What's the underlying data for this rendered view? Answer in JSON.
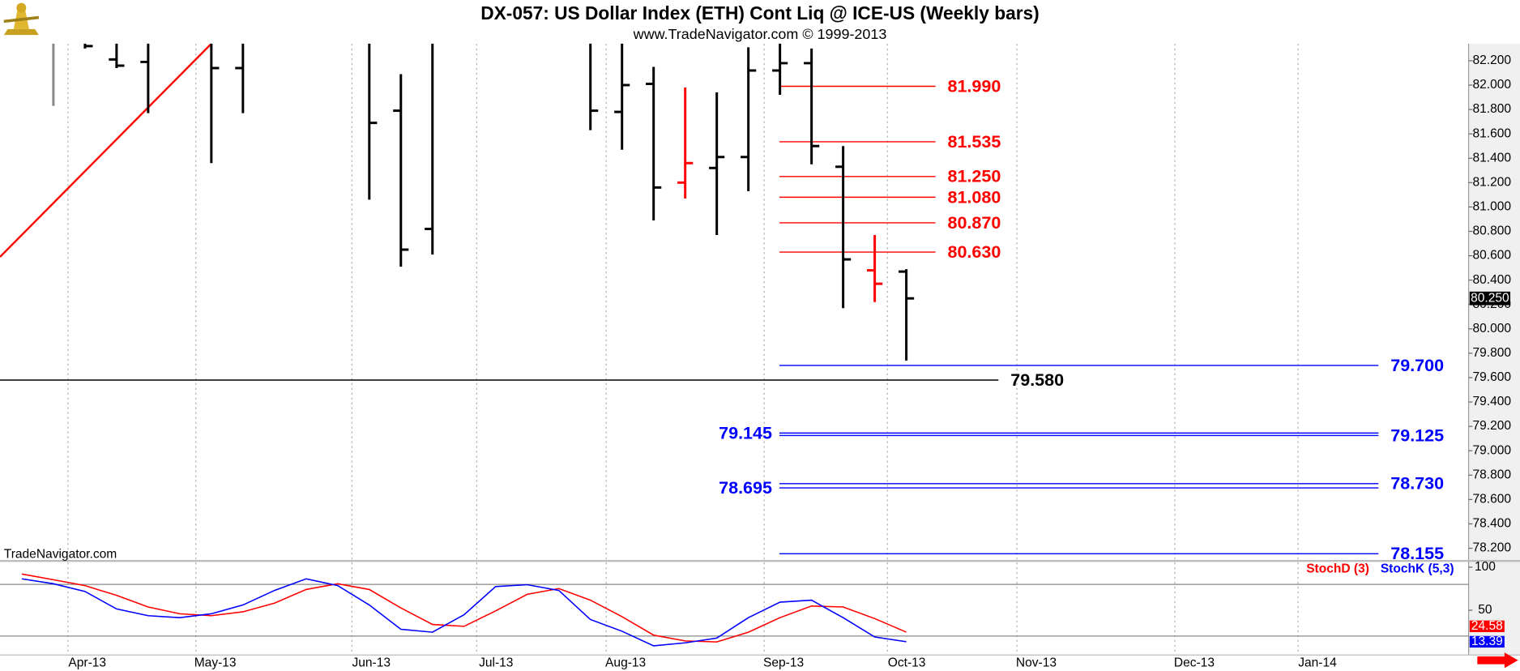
{
  "header": {
    "title": "DX-057:  US Dollar Index (ETH) Cont Liq @ ICE-US  (Weekly bars)",
    "subtitle": "www.TradeNavigator.com © 1999-2013"
  },
  "watermark": "TradeNavigator.com",
  "chart_data": [
    {
      "type": "ohlc",
      "x": [
        0,
        1,
        2,
        3,
        5,
        6,
        10,
        11,
        12,
        17,
        18,
        19,
        20,
        21,
        22,
        23,
        24,
        25,
        26,
        27
      ],
      "open": [
        null,
        null,
        82.21,
        82.19,
        null,
        82.14,
        null,
        81.79,
        80.82,
        null,
        81.78,
        82.01,
        81.2,
        81.32,
        81.41,
        82.12,
        82.18,
        81.33,
        80.48,
        80.47
      ],
      "high": [
        82.4,
        82.4,
        82.4,
        82.4,
        82.4,
        82.4,
        82.4,
        82.09,
        82.4,
        82.4,
        82.4,
        82.15,
        81.98,
        81.94,
        82.31,
        82.4,
        82.3,
        81.5,
        80.77,
        80.49
      ],
      "low": [
        81.83,
        82.3,
        82.14,
        81.77,
        81.36,
        81.77,
        81.06,
        80.51,
        80.61,
        81.63,
        81.47,
        80.89,
        81.07,
        80.77,
        81.13,
        81.92,
        81.35,
        80.17,
        80.22,
        79.74
      ],
      "close": [
        null,
        82.32,
        82.16,
        null,
        82.14,
        null,
        81.69,
        80.65,
        null,
        81.79,
        82.0,
        81.16,
        81.36,
        81.41,
        82.12,
        82.18,
        81.5,
        80.57,
        80.37,
        80.25
      ],
      "colors": [
        "#888888",
        "#000000",
        "#000000",
        "#000000",
        "#000000",
        "#000000",
        "#000000",
        "#000000",
        "#000000",
        "#000000",
        "#000000",
        "#000000",
        "#ff0000",
        "#000000",
        "#000000",
        "#000000",
        "#000000",
        "#000000",
        "#ff0000",
        "#000000"
      ],
      "close_label": "80.250",
      "trendline": {
        "x": [
          -1.69,
          5
        ],
        "y": [
          80.59,
          82.34
        ],
        "color": "#ff0000"
      },
      "levels": [
        {
          "value": 81.99,
          "label": "81.990",
          "color": "#ff0000",
          "label_position": "right"
        },
        {
          "value": 81.535,
          "label": "81.535",
          "color": "#ff0000",
          "label_position": "right"
        },
        {
          "value": 81.25,
          "label": "81.250",
          "color": "#ff0000",
          "label_position": "right"
        },
        {
          "value": 81.08,
          "label": "81.080",
          "color": "#ff0000",
          "label_position": "right"
        },
        {
          "value": 80.87,
          "label": "80.870",
          "color": "#ff0000",
          "label_position": "right"
        },
        {
          "value": 80.63,
          "label": "80.630",
          "color": "#ff0000",
          "label_position": "right"
        },
        {
          "value": 79.7,
          "label": "79.700",
          "color": "#0000ff",
          "label_position": "right"
        },
        {
          "value": 79.58,
          "label": "79.580",
          "color": "#000000",
          "label_position": "right"
        },
        {
          "value": 79.145,
          "label": "79.145",
          "color": "#0000ff",
          "label_position": "left"
        },
        {
          "value": 79.125,
          "label": "79.125",
          "color": "#0000ff",
          "label_position": "right"
        },
        {
          "value": 78.73,
          "label": "78.730",
          "color": "#0000ff",
          "label_position": "right"
        },
        {
          "value": 78.695,
          "label": "78.695",
          "color": "#0000ff",
          "label_position": "left"
        },
        {
          "value": 78.155,
          "label": "78.155",
          "color": "#0000ff",
          "label_position": "right"
        }
      ],
      "xlim": [
        -1.69,
        44.8
      ],
      "ylim": [
        78.1,
        82.34
      ],
      "yticks": [
        {
          "value": 78.2,
          "label": "78.200"
        },
        {
          "value": 78.4,
          "label": "78.400"
        },
        {
          "value": 78.6,
          "label": "78.600"
        },
        {
          "value": 78.8,
          "label": "78.800"
        },
        {
          "value": 79.0,
          "label": "79.000"
        },
        {
          "value": 79.2,
          "label": "79.200"
        },
        {
          "value": 79.4,
          "label": "79.400"
        },
        {
          "value": 79.6,
          "label": "79.600"
        },
        {
          "value": 79.8,
          "label": "79.800"
        },
        {
          "value": 80.0,
          "label": "80.000"
        },
        {
          "value": 80.2,
          "label": "80.200"
        },
        {
          "value": 80.4,
          "label": "80.400"
        },
        {
          "value": 80.6,
          "label": "80.600"
        },
        {
          "value": 80.8,
          "label": "80.800"
        },
        {
          "value": 81.0,
          "label": "81.000"
        },
        {
          "value": 81.2,
          "label": "81.200"
        },
        {
          "value": 81.4,
          "label": "81.400"
        },
        {
          "value": 81.6,
          "label": "81.600"
        },
        {
          "value": 81.8,
          "label": "81.800"
        },
        {
          "value": 82.0,
          "label": "82.000"
        },
        {
          "value": 82.2,
          "label": "82.200"
        }
      ]
    },
    {
      "type": "line",
      "x": [
        -1,
        0,
        1,
        2,
        3,
        4,
        5,
        6,
        7,
        8,
        9,
        10,
        11,
        12,
        13,
        14,
        15,
        16,
        17,
        18,
        19,
        20,
        21,
        22,
        23,
        24,
        25,
        26,
        27
      ],
      "series": [
        {
          "name": "StochD (3)",
          "color": "#ff0000",
          "values": [
            92.1,
            85.4,
            78.6,
            67.3,
            53.8,
            45.9,
            43.7,
            48.2,
            58.3,
            74.1,
            80.8,
            74.1,
            52.7,
            33.5,
            31.3,
            49.3,
            68.5,
            75.2,
            61.7,
            42.5,
            21.1,
            14.4,
            13.2,
            24.5,
            41.4,
            54.9,
            53.8,
            40.3,
            24.58
          ]
        },
        {
          "name": "StochK (5,3)",
          "color": "#0000ff",
          "values": [
            86.5,
            80.8,
            71.8,
            51.5,
            43.7,
            41.4,
            45.9,
            56.1,
            73.0,
            86.5,
            78.6,
            56.1,
            27.9,
            24.5,
            44.8,
            77.5,
            79.7,
            73.0,
            39.2,
            25.6,
            8.7,
            12.1,
            17.7,
            41.4,
            59.4,
            61.7,
            41.4,
            18.9,
            13.39
          ]
        }
      ],
      "reference_lines": [
        20,
        80
      ],
      "xlim": [
        -1.69,
        44.8
      ],
      "xticks": [
        {
          "value": 0.46,
          "label": "Apr-13"
        },
        {
          "value": 4.51,
          "label": "May-13"
        },
        {
          "value": 9.45,
          "label": "Jun-13"
        },
        {
          "value": 13.4,
          "label": "Jul-13"
        },
        {
          "value": 17.5,
          "label": "Aug-13"
        },
        {
          "value": 22.5,
          "label": "Sep-13"
        },
        {
          "value": 26.4,
          "label": "Oct-13"
        },
        {
          "value": 30.5,
          "label": "Nov-13"
        },
        {
          "value": 35.5,
          "label": "Dec-13"
        },
        {
          "value": 39.4,
          "label": "Jan-14"
        }
      ],
      "ylim": [
        -1.4,
        105.6
      ],
      "yticks": [
        50,
        100
      ],
      "grid": true
    }
  ]
}
